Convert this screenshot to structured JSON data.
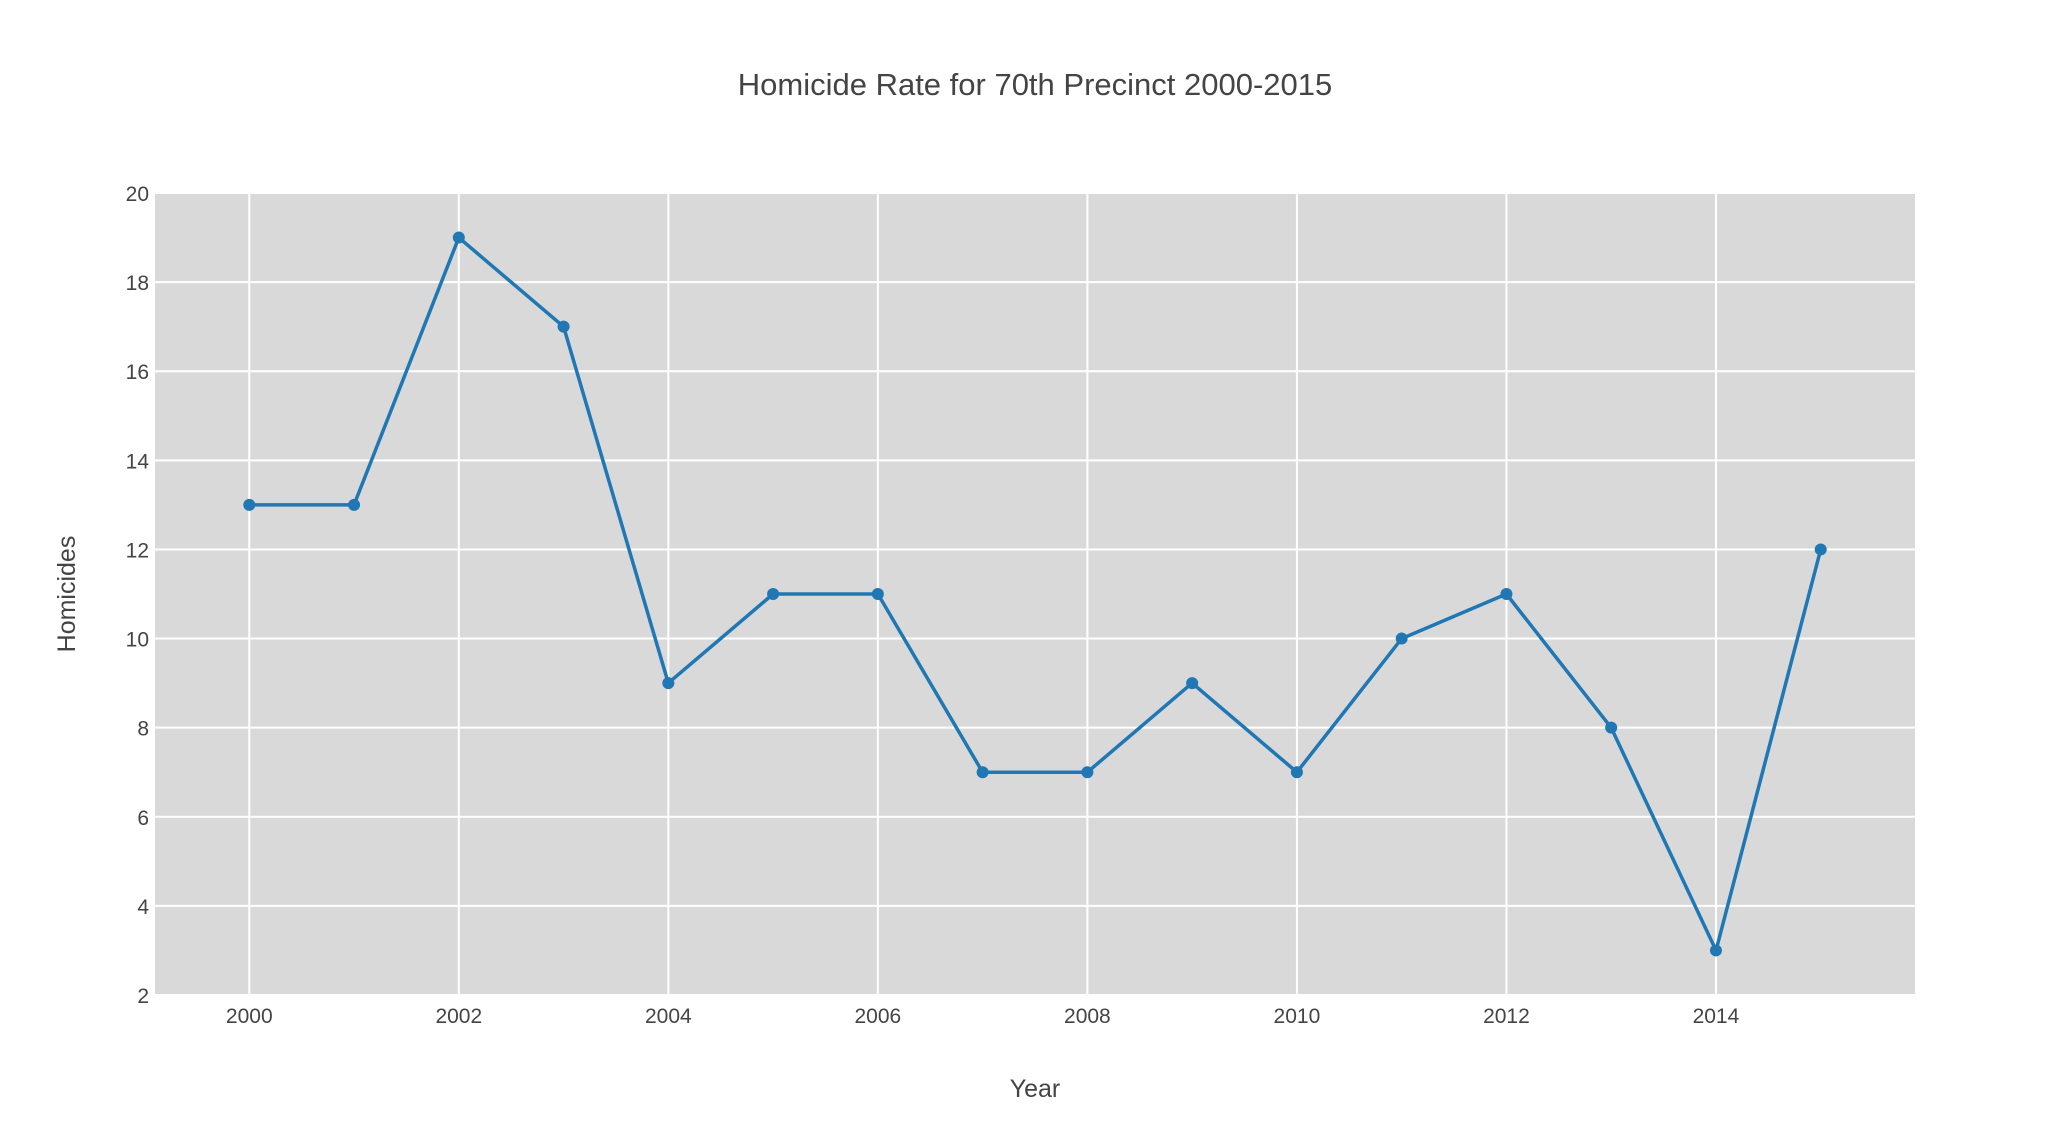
{
  "chart_data": {
    "type": "line",
    "title": "Homicide Rate for 70th Precinct 2000-2015",
    "xlabel": "Year",
    "ylabel": "Homicides",
    "xlim": [
      1999.1,
      2015.9
    ],
    "ylim": [
      2,
      20
    ],
    "x_ticks": [
      2000,
      2002,
      2004,
      2006,
      2008,
      2010,
      2012,
      2014
    ],
    "y_ticks": [
      2,
      4,
      6,
      8,
      10,
      12,
      14,
      16,
      18,
      20
    ],
    "grid": true,
    "legend": "none",
    "x": [
      2000,
      2001,
      2002,
      2003,
      2004,
      2005,
      2006,
      2007,
      2008,
      2009,
      2010,
      2011,
      2012,
      2013,
      2014,
      2015
    ],
    "series": [
      {
        "values": [
          13,
          13,
          19,
          17,
          9,
          11,
          11,
          7,
          7,
          9,
          7,
          10,
          11,
          8,
          3,
          12
        ]
      }
    ],
    "colors": {
      "line": "#1f77b4",
      "plot_background": "#d9d9d9",
      "grid": "#ffffff",
      "text": "#444444"
    }
  }
}
